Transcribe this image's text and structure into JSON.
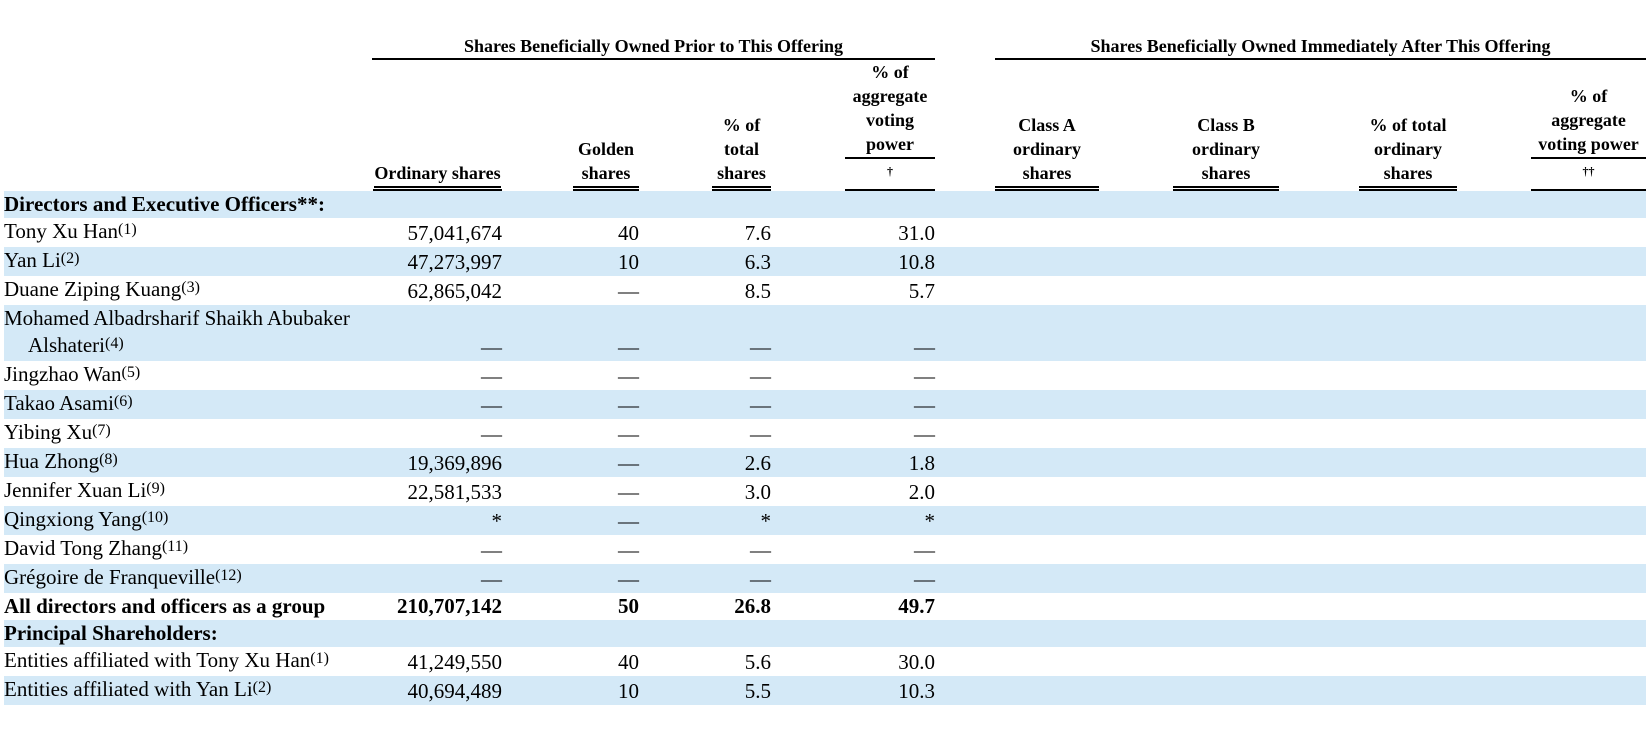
{
  "table": {
    "group_headers": [
      "Shares Beneficially Owned Prior to This Offering",
      "Shares Beneficially Owned Immediately After This Offering"
    ],
    "columns": [
      {
        "text": "Ordinary shares"
      },
      {
        "text": "Golden shares"
      },
      {
        "text": "% of total shares"
      },
      {
        "text": "% of aggregate voting power",
        "mark": "†"
      },
      {
        "text": "Class A ordinary shares"
      },
      {
        "text": "Class B ordinary shares"
      },
      {
        "text": "% of total ordinary shares"
      },
      {
        "text": "% of aggregate voting power",
        "mark": "††"
      }
    ],
    "rows": [
      {
        "name": "Directors and Executive Officers**:",
        "bold": true
      },
      {
        "name": "Tony Xu Han",
        "note": "(1)",
        "values": [
          "57,041,674",
          "40",
          "7.6",
          "31.0"
        ]
      },
      {
        "name": "Yan Li",
        "note": "(2)",
        "values": [
          "47,273,997",
          "10",
          "6.3",
          "10.8"
        ]
      },
      {
        "name": "Duane Ziping Kuang",
        "note": "(3)",
        "values": [
          "62,865,042",
          "—",
          "8.5",
          "5.7"
        ]
      },
      {
        "name": "Mohamed Albadrsharif Shaikh Abubaker Alshateri",
        "note": "(4)",
        "values": [
          "—",
          "—",
          "—",
          "—"
        ]
      },
      {
        "name": "Jingzhao Wan",
        "note": "(5)",
        "values": [
          "—",
          "—",
          "—",
          "—"
        ]
      },
      {
        "name": "Takao Asami",
        "note": "(6)",
        "values": [
          "—",
          "—",
          "—",
          "—"
        ]
      },
      {
        "name": "Yibing Xu",
        "note": "(7)",
        "values": [
          "—",
          "—",
          "—",
          "—"
        ]
      },
      {
        "name": "Hua Zhong",
        "note": "(8)",
        "values": [
          "19,369,896",
          "—",
          "2.6",
          "1.8"
        ]
      },
      {
        "name": "Jennifer Xuan Li",
        "note": "(9)",
        "values": [
          "22,581,533",
          "—",
          "3.0",
          "2.0"
        ]
      },
      {
        "name": "Qingxiong Yang",
        "note": "(10)",
        "values": [
          "*",
          "—",
          "*",
          "*"
        ]
      },
      {
        "name": "David Tong Zhang",
        "note": "(11)",
        "values": [
          "—",
          "—",
          "—",
          "—"
        ]
      },
      {
        "name": "Grégoire de Franqueville",
        "note": "(12)",
        "values": [
          "—",
          "—",
          "—",
          "—"
        ]
      },
      {
        "name": "All directors and officers as a group",
        "bold": true,
        "values": [
          "210,707,142",
          "50",
          "26.8",
          "49.7"
        ]
      },
      {
        "name": "Principal Shareholders:",
        "bold": true
      },
      {
        "name": "Entities affiliated with Tony Xu Han",
        "note": "(1)",
        "values": [
          "41,249,550",
          "40",
          "5.6",
          "30.0"
        ]
      },
      {
        "name": "Entities affiliated with Yan Li",
        "note": "(2)",
        "values": [
          "40,694,489",
          "10",
          "5.5",
          "10.3"
        ]
      }
    ]
  }
}
